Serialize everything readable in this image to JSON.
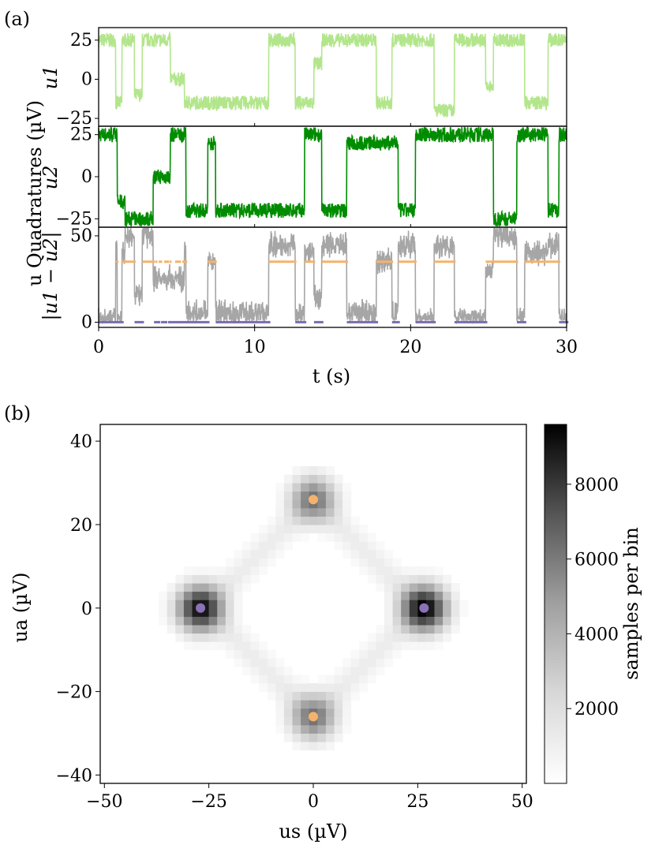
{
  "panel_a": {
    "label": "(a)",
    "ylabel": "u Quadratures (µV)",
    "xlabel": "t (s)",
    "x_ticks": [
      "0",
      "10",
      "20",
      "30"
    ],
    "xlim": [
      0,
      30
    ],
    "subplots": [
      {
        "name": "u1",
        "ylabel": "u1",
        "color": "#b3e68c",
        "ylim": [
          -30,
          33
        ],
        "y_ticks": [
          "25",
          "0",
          "−25"
        ],
        "y_tick_values": [
          25,
          0,
          -25
        ]
      },
      {
        "name": "u2",
        "ylabel": "u2",
        "color": "#008c00",
        "ylim": [
          -30,
          30
        ],
        "y_ticks": [
          "25",
          "0",
          "−25"
        ],
        "y_tick_values": [
          25,
          0,
          -25
        ]
      },
      {
        "name": "diff",
        "ylabel": "|u1 − u2|",
        "color": "#a6a6a6",
        "ylim": [
          -3,
          55
        ],
        "y_ticks": [
          "50",
          "0"
        ],
        "y_tick_values": [
          50,
          0
        ]
      }
    ]
  },
  "panel_b": {
    "label": "(b)",
    "xlabel": "us (µV)",
    "ylabel": "ua (µV)",
    "x_ticks": [
      "−50",
      "−25",
      "0",
      "25",
      "50"
    ],
    "y_ticks": [
      "40",
      "20",
      "0",
      "−20",
      "−40"
    ],
    "colorbar_label": "samples per bin",
    "colorbar_ticks": [
      "8000",
      "6000",
      "4000",
      "2000"
    ],
    "colorbar_tick_values": [
      8000,
      6000,
      4000,
      2000
    ],
    "colorbar_range": [
      0,
      9600
    ]
  },
  "chart_data": [
    {
      "type": "line",
      "title": "(a)",
      "xlabel": "t (s)",
      "ylabel": "u Quadratures (µV)",
      "xlim": [
        0,
        30
      ],
      "series": [
        {
          "name": "u1",
          "color": "#b3e68c",
          "description": "telegraph signal switching between about +25 and −25",
          "levels": [
            25,
            -25
          ],
          "segments": [
            [
              0,
              1.1,
              25
            ],
            [
              1.1,
              1.5,
              -15
            ],
            [
              1.5,
              2.3,
              25
            ],
            [
              2.3,
              2.8,
              -10
            ],
            [
              2.8,
              4.6,
              25
            ],
            [
              4.6,
              5.5,
              0
            ],
            [
              5.5,
              10.9,
              -15
            ],
            [
              10.9,
              12.6,
              25
            ],
            [
              12.6,
              13.8,
              -15
            ],
            [
              13.8,
              14.3,
              10
            ],
            [
              14.3,
              17.8,
              25
            ],
            [
              17.8,
              18.8,
              -15
            ],
            [
              18.8,
              21.5,
              25
            ],
            [
              21.5,
              22.8,
              -20
            ],
            [
              22.8,
              24.8,
              25
            ],
            [
              24.8,
              25.3,
              -5
            ],
            [
              25.3,
              27.3,
              25
            ],
            [
              27.3,
              28.8,
              -15
            ],
            [
              28.8,
              30,
              25
            ]
          ]
        },
        {
          "name": "u2",
          "color": "#008c00",
          "description": "telegraph signal switching between about +25 and −25",
          "levels": [
            25,
            -25
          ],
          "segments": [
            [
              0,
              1.2,
              25
            ],
            [
              1.2,
              1.7,
              -15
            ],
            [
              1.7,
              3.5,
              -25
            ],
            [
              3.5,
              4.6,
              0
            ],
            [
              4.6,
              5.6,
              25
            ],
            [
              5.6,
              7.0,
              -20
            ],
            [
              7.0,
              7.5,
              20
            ],
            [
              7.5,
              13.2,
              -20
            ],
            [
              13.2,
              14.3,
              25
            ],
            [
              14.3,
              15.9,
              -20
            ],
            [
              15.9,
              19.2,
              20
            ],
            [
              19.2,
              20.3,
              -20
            ],
            [
              20.3,
              25.3,
              25
            ],
            [
              25.3,
              26.8,
              -25
            ],
            [
              26.8,
              28.8,
              25
            ],
            [
              28.8,
              29.5,
              -20
            ],
            [
              29.5,
              30,
              25
            ]
          ]
        },
        {
          "name": "|u1 − u2|",
          "color": "#a6a6a6",
          "description": "absolute difference; near 0 when u1≈u2, near 50 otherwise",
          "levels": [
            0,
            50
          ]
        },
        {
          "name": "state-A marker",
          "color": "#f5b26b",
          "style": "dotted",
          "level": 35
        },
        {
          "name": "state-B marker",
          "color": "#7b6bb0",
          "style": "dotted",
          "level": 0
        }
      ]
    },
    {
      "type": "heatmap",
      "title": "(b)",
      "xlabel": "us (µV)",
      "ylabel": "ua (µV)",
      "xlim": [
        -51,
        51
      ],
      "ylim": [
        -42,
        44
      ],
      "colorbar": {
        "label": "samples per bin",
        "min": 0,
        "max": 9600
      },
      "peaks": [
        {
          "x": -27,
          "y": 0,
          "counts": 9000,
          "marker_color": "#8b72b8"
        },
        {
          "x": 26.5,
          "y": 0,
          "counts": 9600,
          "marker_color": "#8b72b8"
        },
        {
          "x": 0,
          "y": 26,
          "counts": 4500,
          "marker_color": "#f5b26b"
        },
        {
          "x": 0,
          "y": -26,
          "counts": 4500,
          "marker_color": "#f5b26b"
        }
      ],
      "markers": [
        {
          "x": -27,
          "y": 0,
          "color": "#8b72b8"
        },
        {
          "x": 26.5,
          "y": 0,
          "color": "#8b72b8"
        },
        {
          "x": 0,
          "y": 26,
          "color": "#f5b26b"
        },
        {
          "x": 0,
          "y": -26,
          "color": "#f5b26b"
        }
      ]
    }
  ]
}
